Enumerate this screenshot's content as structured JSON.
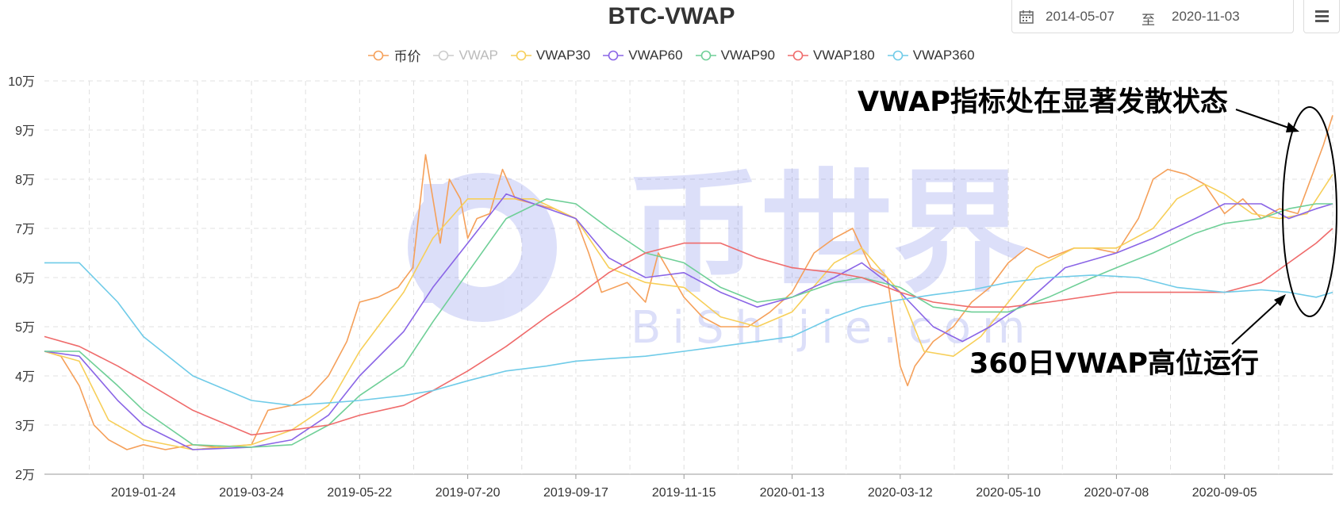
{
  "header": {
    "title": "BTC-VWAP",
    "date_from": "2014-05-07",
    "date_sep": "至",
    "date_to": "2020-11-03"
  },
  "watermark": {
    "brand": "币世界",
    "site": "BiShijie.com"
  },
  "annotations": {
    "upper": "VWAP指标处在显著发散状态",
    "lower": "360日VWAP高位运行"
  },
  "colors": {
    "price": "#f5a05a",
    "vwap": "#cccccc",
    "vwap30": "#f7cf59",
    "vwap60": "#8a65e6",
    "vwap90": "#6fcf97",
    "vwap180": "#ef6b6b",
    "vwap360": "#6fcbe8"
  },
  "chart_data": {
    "type": "line",
    "title": "BTC-VWAP",
    "y_tick_labels": [
      "2万",
      "3万",
      "4万",
      "5万",
      "6万",
      "7万",
      "8万",
      "9万",
      "10万"
    ],
    "ylim": [
      20000,
      100000
    ],
    "x_tick_labels": [
      "2019-01-24",
      "2019-03-24",
      "2019-05-22",
      "2019-07-20",
      "2019-09-17",
      "2019-11-15",
      "2020-01-13",
      "2020-03-12",
      "2020-05-10",
      "2020-07-08",
      "2020-09-05"
    ],
    "xlim": [
      "2018-12-01",
      "2020-11-03"
    ],
    "grid": true,
    "legend_position": "top-center",
    "series": [
      {
        "name": "币价",
        "key": "price",
        "visible": true,
        "x": [
          "2018-12-01",
          "2018-12-10",
          "2018-12-20",
          "2018-12-28",
          "2019-01-05",
          "2019-01-15",
          "2019-01-24",
          "2019-02-05",
          "2019-02-20",
          "2019-03-05",
          "2019-03-24",
          "2019-04-02",
          "2019-04-15",
          "2019-04-25",
          "2019-05-05",
          "2019-05-15",
          "2019-05-22",
          "2019-06-01",
          "2019-06-12",
          "2019-06-20",
          "2019-06-27",
          "2019-07-05",
          "2019-07-10",
          "2019-07-16",
          "2019-07-20",
          "2019-07-25",
          "2019-08-01",
          "2019-08-08",
          "2019-08-15",
          "2019-08-25",
          "2019-09-05",
          "2019-09-17",
          "2019-09-24",
          "2019-10-01",
          "2019-10-15",
          "2019-10-25",
          "2019-11-01",
          "2019-11-15",
          "2019-11-25",
          "2019-12-05",
          "2019-12-20",
          "2020-01-01",
          "2020-01-13",
          "2020-01-25",
          "2020-02-05",
          "2020-02-15",
          "2020-02-25",
          "2020-03-05",
          "2020-03-12",
          "2020-03-16",
          "2020-03-20",
          "2020-03-30",
          "2020-04-10",
          "2020-04-20",
          "2020-04-30",
          "2020-05-10",
          "2020-05-20",
          "2020-06-01",
          "2020-06-15",
          "2020-06-25",
          "2020-07-08",
          "2020-07-20",
          "2020-07-28",
          "2020-08-05",
          "2020-08-15",
          "2020-08-25",
          "2020-09-05",
          "2020-09-15",
          "2020-09-25",
          "2020-10-05",
          "2020-10-15",
          "2020-10-22",
          "2020-10-29",
          "2020-11-03"
        ],
        "y": [
          45000,
          44000,
          38000,
          30000,
          27000,
          25000,
          26000,
          25000,
          26000,
          25500,
          26000,
          33000,
          34000,
          36000,
          40000,
          47000,
          55000,
          56000,
          58000,
          62000,
          85000,
          67000,
          80000,
          76000,
          68000,
          72000,
          73000,
          82000,
          76000,
          75000,
          74000,
          72000,
          65000,
          57000,
          59000,
          55000,
          65000,
          56000,
          52000,
          50000,
          50000,
          53000,
          57000,
          65000,
          68000,
          70000,
          62000,
          60000,
          42000,
          38000,
          42000,
          47000,
          50000,
          55000,
          58000,
          63000,
          66000,
          64000,
          66000,
          66000,
          65000,
          72000,
          80000,
          82000,
          81000,
          79000,
          73000,
          76000,
          72000,
          74000,
          73000,
          80000,
          87000,
          93000
        ]
      },
      {
        "name": "VWAP",
        "key": "vwap",
        "visible": false,
        "x": [],
        "y": []
      },
      {
        "name": "VWAP30",
        "key": "vwap30",
        "visible": true,
        "x": [
          "2018-12-01",
          "2018-12-20",
          "2019-01-05",
          "2019-01-24",
          "2019-02-20",
          "2019-03-24",
          "2019-04-15",
          "2019-05-05",
          "2019-05-22",
          "2019-06-15",
          "2019-07-01",
          "2019-07-20",
          "2019-08-10",
          "2019-08-25",
          "2019-09-17",
          "2019-10-05",
          "2019-10-25",
          "2019-11-15",
          "2019-12-05",
          "2019-12-25",
          "2020-01-13",
          "2020-02-05",
          "2020-02-20",
          "2020-03-12",
          "2020-03-25",
          "2020-04-10",
          "2020-04-25",
          "2020-05-10",
          "2020-05-25",
          "2020-06-15",
          "2020-07-08",
          "2020-07-28",
          "2020-08-10",
          "2020-08-25",
          "2020-09-05",
          "2020-09-20",
          "2020-10-05",
          "2020-10-20",
          "2020-11-03"
        ],
        "y": [
          45000,
          43000,
          31000,
          27000,
          25000,
          26000,
          29000,
          34000,
          45000,
          57000,
          68000,
          76000,
          76000,
          76000,
          72000,
          62000,
          59000,
          58000,
          52000,
          50000,
          53000,
          63000,
          66000,
          57000,
          45000,
          44000,
          48000,
          55000,
          62000,
          66000,
          66000,
          70000,
          76000,
          79000,
          77000,
          73000,
          72000,
          73000,
          81000
        ]
      },
      {
        "name": "VWAP60",
        "key": "vwap60",
        "visible": true,
        "x": [
          "2018-12-01",
          "2018-12-20",
          "2019-01-10",
          "2019-01-24",
          "2019-02-20",
          "2019-03-24",
          "2019-04-15",
          "2019-05-05",
          "2019-05-22",
          "2019-06-15",
          "2019-07-01",
          "2019-07-20",
          "2019-08-10",
          "2019-08-25",
          "2019-09-17",
          "2019-10-05",
          "2019-10-25",
          "2019-11-15",
          "2019-12-05",
          "2019-12-25",
          "2020-01-13",
          "2020-02-05",
          "2020-02-20",
          "2020-03-12",
          "2020-03-30",
          "2020-04-15",
          "2020-04-30",
          "2020-05-20",
          "2020-06-10",
          "2020-07-08",
          "2020-07-28",
          "2020-08-20",
          "2020-09-05",
          "2020-09-25",
          "2020-10-10",
          "2020-10-25",
          "2020-11-03"
        ],
        "y": [
          45000,
          44000,
          35000,
          30000,
          25000,
          25500,
          27000,
          32000,
          40000,
          49000,
          58000,
          67000,
          77000,
          75000,
          72000,
          64000,
          60000,
          61000,
          57000,
          54000,
          56000,
          60000,
          63000,
          57000,
          50000,
          47000,
          50000,
          55000,
          62000,
          65000,
          68000,
          72000,
          75000,
          75000,
          72000,
          74000,
          75000
        ]
      },
      {
        "name": "VWAP90",
        "key": "vwap90",
        "visible": true,
        "x": [
          "2018-12-01",
          "2018-12-20",
          "2019-01-10",
          "2019-01-24",
          "2019-02-20",
          "2019-03-24",
          "2019-04-15",
          "2019-05-05",
          "2019-05-22",
          "2019-06-15",
          "2019-07-01",
          "2019-07-20",
          "2019-08-10",
          "2019-09-01",
          "2019-09-17",
          "2019-10-05",
          "2019-10-25",
          "2019-11-15",
          "2019-12-05",
          "2019-12-25",
          "2020-01-13",
          "2020-02-05",
          "2020-02-20",
          "2020-03-12",
          "2020-03-30",
          "2020-04-20",
          "2020-05-10",
          "2020-06-01",
          "2020-06-25",
          "2020-07-08",
          "2020-07-28",
          "2020-08-20",
          "2020-09-05",
          "2020-09-25",
          "2020-10-10",
          "2020-10-25",
          "2020-11-03"
        ],
        "y": [
          45000,
          45000,
          38000,
          33000,
          26000,
          25500,
          26000,
          30000,
          36000,
          42000,
          51000,
          61000,
          72000,
          76000,
          75000,
          70000,
          65000,
          63000,
          58000,
          55000,
          56000,
          59000,
          60000,
          58000,
          54000,
          53000,
          53000,
          56000,
          60000,
          62000,
          65000,
          69000,
          71000,
          72000,
          74000,
          75000,
          75000
        ]
      },
      {
        "name": "VWAP180",
        "key": "vwap180",
        "visible": true,
        "x": [
          "2018-12-01",
          "2018-12-20",
          "2019-01-10",
          "2019-01-24",
          "2019-02-20",
          "2019-03-24",
          "2019-04-15",
          "2019-05-05",
          "2019-05-22",
          "2019-06-15",
          "2019-07-01",
          "2019-07-20",
          "2019-08-10",
          "2019-09-01",
          "2019-09-17",
          "2019-10-05",
          "2019-10-25",
          "2019-11-15",
          "2019-12-05",
          "2019-12-25",
          "2020-01-13",
          "2020-02-05",
          "2020-02-20",
          "2020-03-12",
          "2020-03-30",
          "2020-04-20",
          "2020-05-10",
          "2020-06-01",
          "2020-07-08",
          "2020-08-10",
          "2020-09-05",
          "2020-09-25",
          "2020-10-10",
          "2020-10-25",
          "2020-11-03"
        ],
        "y": [
          48000,
          46000,
          42000,
          39000,
          33000,
          28000,
          29000,
          30000,
          32000,
          34000,
          37000,
          41000,
          46000,
          52000,
          56000,
          61000,
          65000,
          67000,
          67000,
          64000,
          62000,
          61000,
          60000,
          57000,
          55000,
          54000,
          54000,
          55000,
          57000,
          57000,
          57000,
          59000,
          63000,
          67000,
          70000
        ]
      },
      {
        "name": "VWAP360",
        "key": "vwap360",
        "visible": true,
        "x": [
          "2018-12-01",
          "2018-12-20",
          "2019-01-10",
          "2019-01-24",
          "2019-02-20",
          "2019-03-24",
          "2019-04-15",
          "2019-05-05",
          "2019-05-22",
          "2019-06-15",
          "2019-07-01",
          "2019-07-20",
          "2019-08-10",
          "2019-09-01",
          "2019-09-17",
          "2019-10-05",
          "2019-10-25",
          "2019-11-15",
          "2019-12-05",
          "2019-12-25",
          "2020-01-13",
          "2020-02-05",
          "2020-02-20",
          "2020-03-12",
          "2020-03-30",
          "2020-04-20",
          "2020-05-10",
          "2020-06-01",
          "2020-06-25",
          "2020-07-20",
          "2020-08-10",
          "2020-09-05",
          "2020-09-25",
          "2020-10-10",
          "2020-10-25",
          "2020-11-03"
        ],
        "y": [
          63000,
          63000,
          55000,
          48000,
          40000,
          35000,
          34000,
          34500,
          35000,
          36000,
          37000,
          39000,
          41000,
          42000,
          43000,
          43500,
          44000,
          45000,
          46000,
          47000,
          48000,
          52000,
          54000,
          55500,
          56500,
          57500,
          59000,
          60000,
          60500,
          60000,
          58000,
          57000,
          57500,
          57000,
          56000,
          57000
        ]
      }
    ]
  }
}
